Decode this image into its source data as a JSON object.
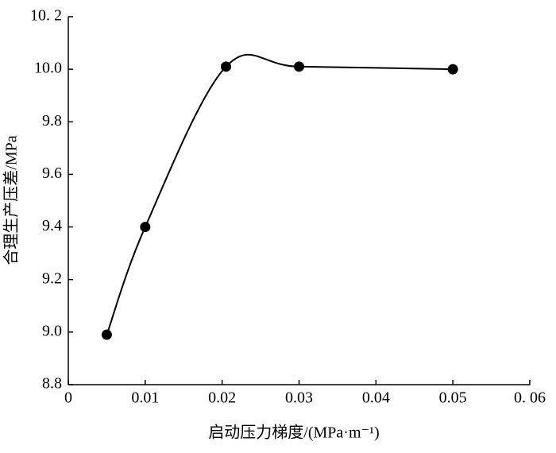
{
  "chart_data": {
    "type": "line",
    "smooth": true,
    "color": "#000000",
    "x_label": "启动压力梯度/(MPa·m⁻¹)",
    "y_label": "合理生产压差/MPa",
    "x": [
      0.005,
      0.01,
      0.0205,
      0.03,
      0.05
    ],
    "values": [
      8.99,
      9.4,
      10.01,
      10.01,
      10.0
    ],
    "xlim": [
      0,
      0.06
    ],
    "xticks": [
      0,
      0.01,
      0.02,
      0.03,
      0.04,
      0.05,
      {
        "value": 0.06,
        "label": "0. 06"
      }
    ],
    "ylim": [
      8.8,
      10.2
    ],
    "yticks": [
      8.8,
      {
        "value": 9,
        "label": "9.0"
      },
      9.2,
      9.4,
      9.6,
      9.8,
      {
        "value": 10,
        "label": "10.0"
      },
      {
        "value": 10.2,
        "label": "10. 2"
      }
    ]
  }
}
